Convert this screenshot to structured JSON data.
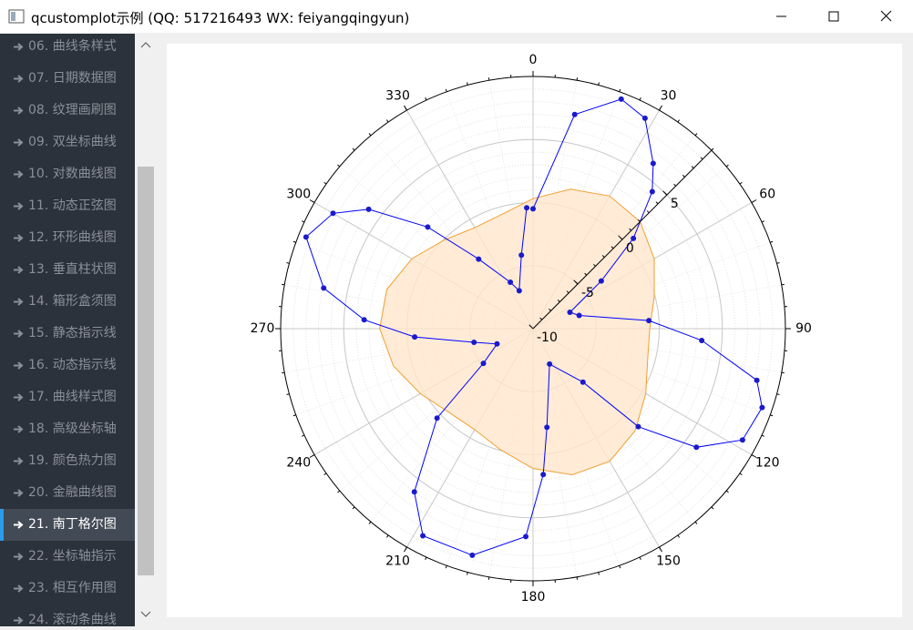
{
  "window": {
    "title": "qcustomplot示例 (QQ: 517216493 WX: feiyangqingyun)"
  },
  "sidebar": {
    "items": [
      "06. 曲线条样式",
      "07. 日期数据图",
      "08. 纹理画刷图",
      "09. 双坐标曲线",
      "10. 对数曲线图",
      "11. 动态正弦图",
      "12. 环形曲线图",
      "13. 垂直柱状图",
      "14. 箱形盒须图",
      "15. 静态指示线",
      "16. 动态指示线",
      "17. 曲线样式图",
      "18. 高级坐标轴",
      "19. 颜色热力图",
      "20. 金融曲线图",
      "21. 南丁格尔图",
      "22. 坐标轴指示",
      "23. 相互作用图",
      "24. 滚动条曲线"
    ],
    "selected_index": 15
  },
  "chart_data": {
    "type": "polar",
    "xlim": [
      0,
      360
    ],
    "xticks": [
      0,
      30,
      60,
      90,
      120,
      150,
      180,
      210,
      240,
      270,
      300,
      330
    ],
    "ylim": [
      -10,
      10
    ],
    "yticks": [
      -10,
      -5,
      0,
      5
    ],
    "grid": true,
    "series": [
      {
        "color": "#f0a030",
        "fill": "#ffe6cc",
        "filled": true,
        "markers": false,
        "x": [
          0,
          15,
          30,
          45,
          60,
          75,
          90,
          105,
          120,
          135,
          150,
          165,
          180,
          195,
          210,
          225,
          240,
          255,
          270,
          285,
          300,
          315,
          330,
          345
        ],
        "values": [
          0.31,
          1.45,
          2.15,
          2.0,
          1.09,
          -0.05,
          -0.75,
          -0.6,
          0.31,
          1.45,
          2.15,
          2.0,
          1.09,
          -0.05,
          -0.75,
          -0.6,
          0.31,
          1.45,
          2.15,
          2.0,
          1.09,
          -0.05,
          -0.75,
          -0.6
        ]
      },
      {
        "color": "#0000ff",
        "marker_color": "#1a1acc",
        "filled": false,
        "markers": true,
        "x": [
          0,
          11,
          21,
          28,
          36,
          41,
          48,
          55,
          66,
          74,
          86,
          94,
          103,
          109,
          118,
          126,
          133,
          137,
          155,
          172,
          176,
          182,
          195,
          208,
          216,
          227,
          235,
          247,
          257,
          266,
          273,
          281,
          292,
          300,
          306,
          314,
          322,
          334,
          340,
          351,
          357
        ],
        "values": [
          -0.5,
          7.3,
          9.5,
          8.9,
          6.2,
          4.4,
          0.7,
          -3.4,
          -6.8,
          -6.2,
          -0.8,
          3.4,
          8.2,
          9.2,
          8.8,
          6.0,
          1.4,
          -4.2,
          -6.9,
          -2.1,
          1.6,
          6.5,
          8.6,
          8.6,
          6.0,
          0.4,
          -5.2,
          -6.9,
          -5.2,
          -0.6,
          3.4,
          6.9,
          9.4,
          8.3,
          6.1,
          1.6,
          -3.0,
          -5.9,
          -6.8,
          -4.1,
          -0.4
        ]
      }
    ]
  }
}
